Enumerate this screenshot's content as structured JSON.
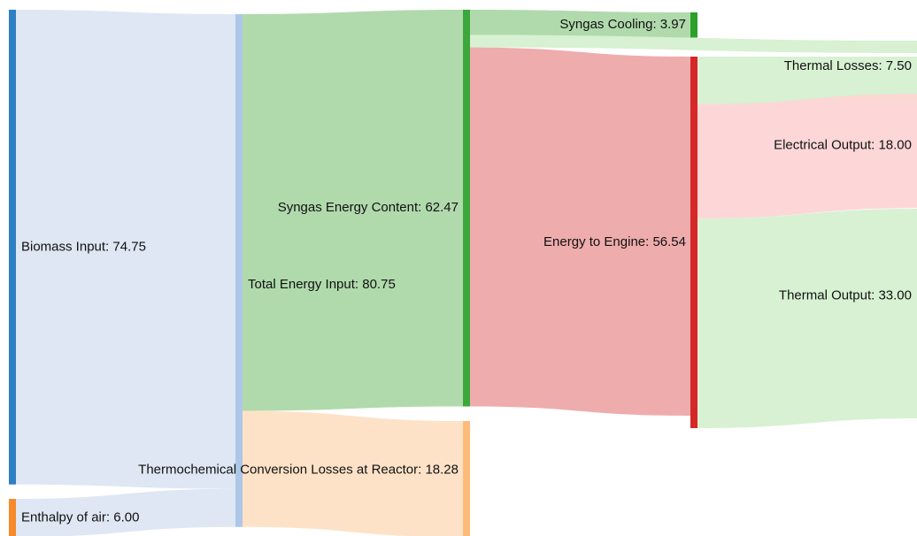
{
  "chart_data": {
    "type": "sankey",
    "nodes": [
      {
        "label": "Biomass Input: 74.75",
        "color": "#2f7fc1"
      },
      {
        "label": "Enthalpy of air: 6.00",
        "color": "#f58b2a"
      },
      {
        "label": "Total Energy Input: 80.75",
        "color": "#aec7e8"
      },
      {
        "label": "Syngas Energy Content: 62.47",
        "color": "#3aa83a"
      },
      {
        "label": "Thermochemical Conversion Losses at Reactor: 18.28",
        "color": "#ffbb78"
      },
      {
        "label": "Syngas Cooling: 3.97",
        "color": "#2ca02c"
      },
      {
        "label": "Energy to Engine: 56.54",
        "color": "#d62728"
      },
      {
        "label": "Thermal Losses: 7.50"
      },
      {
        "label": "Electrical Output: 18.00"
      },
      {
        "label": "Thermal Output: 33.00"
      }
    ],
    "links": [
      {
        "source": 0,
        "target": 2,
        "value": 74.75,
        "color": "#dce6f2"
      },
      {
        "source": 1,
        "target": 2,
        "value": 6.0,
        "color": "#dce6f2"
      },
      {
        "source": 2,
        "target": 3,
        "value": 62.47,
        "color": "#acd8a8"
      },
      {
        "source": 2,
        "target": 4,
        "value": 18.28,
        "color": "#fde0c5"
      },
      {
        "source": 3,
        "target": 5,
        "value": 3.97,
        "color": "#acd8a8"
      },
      {
        "source": 3,
        "target": null,
        "value": 1.96,
        "color": "#d5f0d0"
      },
      {
        "source": 3,
        "target": 6,
        "value": 56.54,
        "color": "#eea8a8"
      },
      {
        "source": 6,
        "target": 7,
        "value": 7.5,
        "color": "#d5f0d0"
      },
      {
        "source": 6,
        "target": 8,
        "value": 18.0,
        "color": "#fdd5d5"
      },
      {
        "source": 6,
        "target": 9,
        "value": 33.0,
        "color": "#d5f0d0"
      }
    ]
  }
}
